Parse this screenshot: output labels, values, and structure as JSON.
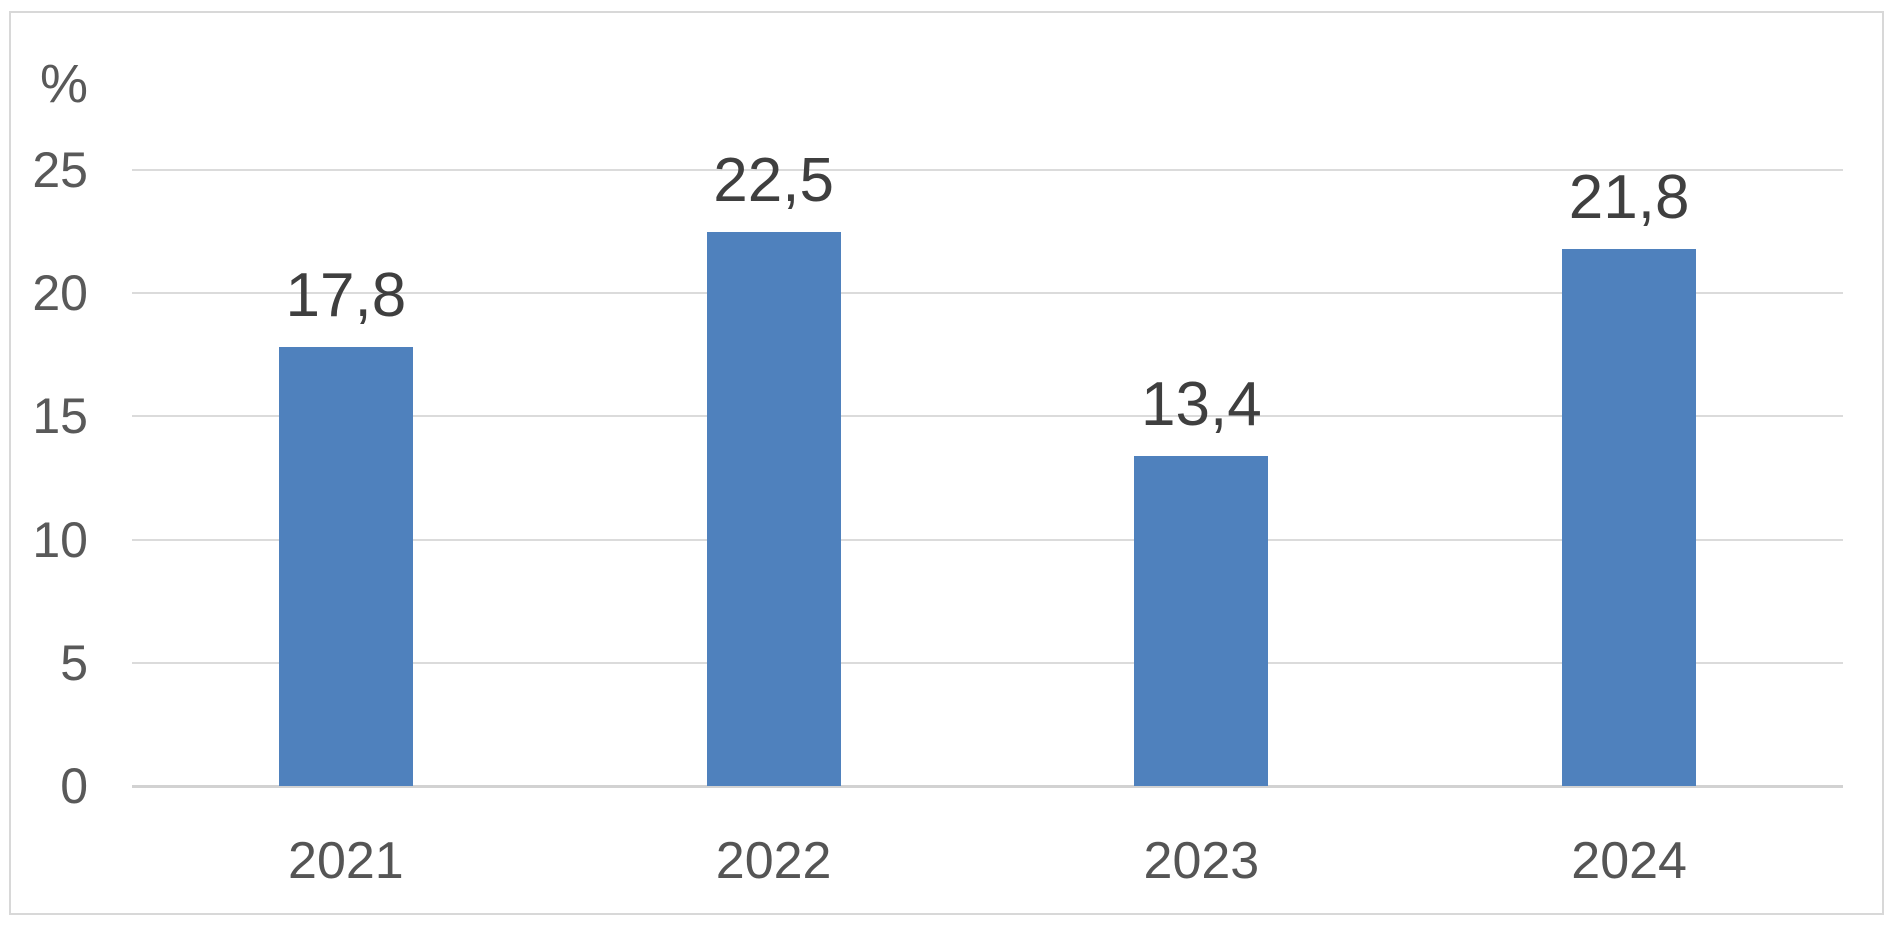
{
  "chart_data": {
    "type": "bar",
    "title": "",
    "ylabel": "%",
    "xlabel": "",
    "categories": [
      "2021",
      "2022",
      "2023",
      "2024"
    ],
    "values": [
      17.8,
      22.5,
      13.4,
      21.8
    ],
    "value_labels": [
      "17,8",
      "22,5",
      "13,4",
      "21,8"
    ],
    "yticks": [
      0,
      5,
      10,
      15,
      20,
      25
    ],
    "ytick_labels": [
      "0",
      "5",
      "10",
      "15",
      "20",
      "25"
    ],
    "ylim": [
      0,
      25
    ],
    "grid": true,
    "legend": false,
    "decimal_separator": ",",
    "colors": {
      "bar_fill": "#4F81BD",
      "gridline": "#DBDBDB",
      "axis_line": "#D2D2D2",
      "frame_border": "#D8D8D8",
      "tick_text": "#595959",
      "data_label_text": "#3F3F3F",
      "background": "#FFFFFF"
    }
  }
}
